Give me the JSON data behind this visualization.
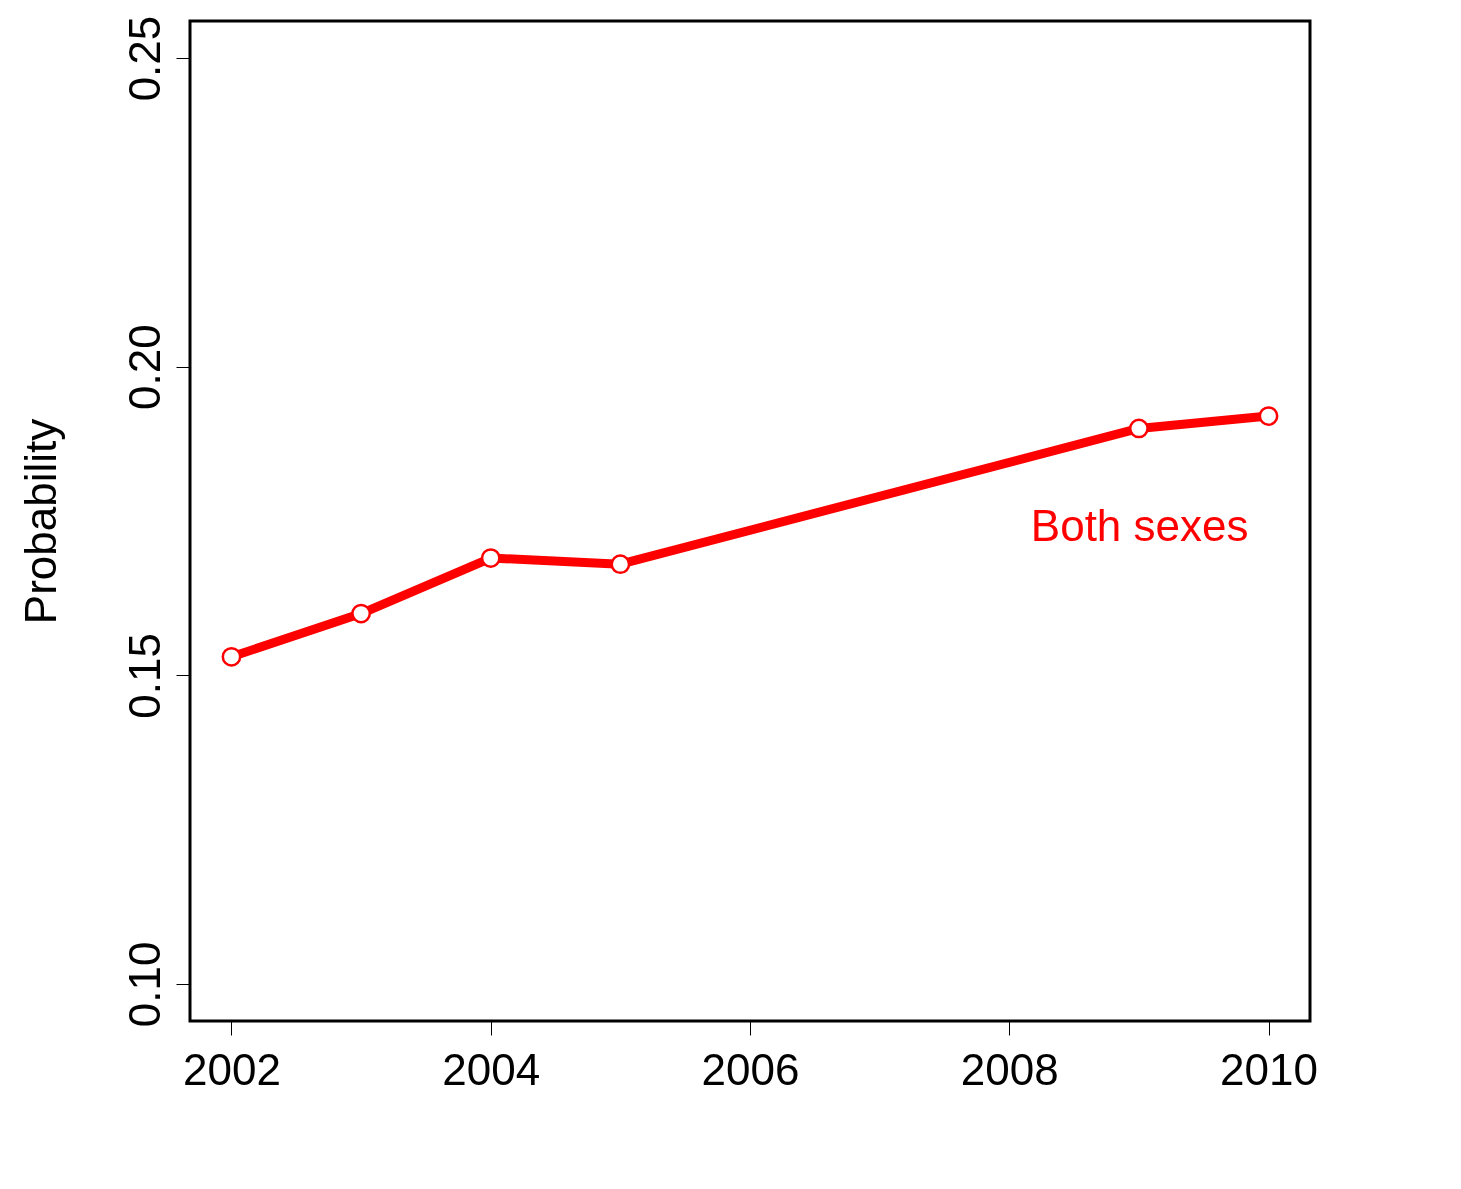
{
  "chart_data": {
    "type": "line",
    "ylabel": "Probability",
    "x": [
      2002,
      2003,
      2004,
      2005,
      2009,
      2010
    ],
    "series": [
      {
        "name": "Both sexes",
        "color": "#ff0000",
        "values": [
          0.153,
          0.16,
          0.169,
          0.168,
          0.19,
          0.192
        ]
      }
    ],
    "xlim": [
      2001.68,
      2010.32
    ],
    "ylim": [
      0.094,
      0.256
    ],
    "xticks": [
      2002,
      2004,
      2006,
      2008,
      2010
    ],
    "yticks": [
      {
        "value": 0.1,
        "label": "0.10"
      },
      0.15,
      {
        "value": 0.2,
        "label": "0.20"
      },
      0.25
    ],
    "marker": "circle",
    "line_style": "solid",
    "grid": false
  }
}
